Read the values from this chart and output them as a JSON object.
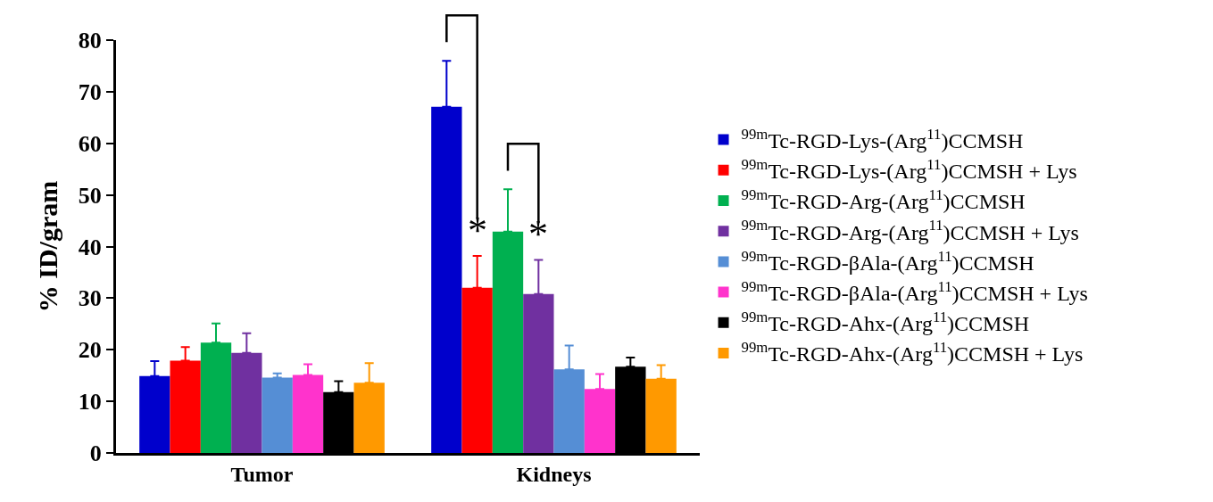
{
  "chart_data": {
    "type": "bar",
    "ylabel": "% ID/gram",
    "categories": [
      "Tumor",
      "Kidneys"
    ],
    "series": [
      {
        "name": "$^{99m}$Tc-RGD-Lys-(Arg$^{11}$)CCMSH",
        "color": "#0000cc",
        "values": [
          14.9,
          67.1
        ],
        "errors": [
          2.9,
          8.9
        ]
      },
      {
        "name": "$^{99m}$Tc-RGD-Lys-(Arg$^{11}$)CCMSH + Lys",
        "color": "#ff0000",
        "values": [
          17.9,
          32.0
        ],
        "errors": [
          2.6,
          6.2
        ]
      },
      {
        "name": "$^{99m}$Tc-RGD-Arg-(Arg$^{11}$)CCMSH",
        "color": "#00b050",
        "values": [
          21.4,
          42.9
        ],
        "errors": [
          3.7,
          8.2
        ]
      },
      {
        "name": "$^{99m}$Tc-RGD-Arg-(Arg$^{11}$)CCMSH + Lys",
        "color": "#7030a0",
        "values": [
          19.4,
          30.8
        ],
        "errors": [
          3.8,
          6.6
        ]
      },
      {
        "name": "$^{99m}$Tc-RGD-βAla-(Arg$^{11}$)CCMSH",
        "color": "#558ed5",
        "values": [
          14.6,
          16.2
        ],
        "errors": [
          0.8,
          4.6
        ]
      },
      {
        "name": "$^{99m}$Tc-RGD-βAla-(Arg$^{11}$)CCMSH + Lys",
        "color": "#ff33cc",
        "values": [
          15.1,
          12.4
        ],
        "errors": [
          2.1,
          2.9
        ]
      },
      {
        "name": "$^{99m}$Tc-RGD-Ahx-(Arg$^{11}$)CCMSH",
        "color": "#000000",
        "values": [
          11.8,
          16.7
        ],
        "errors": [
          2.1,
          1.8
        ]
      },
      {
        "name": "$^{99m}$Tc-RGD-Ahx-(Arg$^{11}$)CCMSH + Lys",
        "color": "#ff9900",
        "values": [
          13.6,
          14.4
        ],
        "errors": [
          3.8,
          2.6
        ]
      }
    ],
    "ylim": [
      0,
      80
    ],
    "yticks": [
      0,
      10,
      20,
      30,
      40,
      50,
      60,
      70,
      80
    ],
    "annotations": [
      "*",
      "*"
    ],
    "legend": "right"
  }
}
